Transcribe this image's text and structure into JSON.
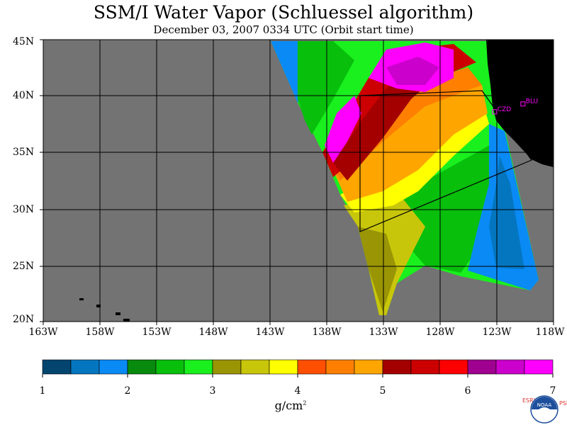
{
  "title": "SSM/I Water Vapor (Schluessel algorithm)",
  "subtitle": "December 03, 2007  0334 UTC  (Orbit start time)",
  "map": {
    "lat_labels": [
      "45N",
      "40N",
      "35N",
      "30N",
      "25N",
      "20N"
    ],
    "lon_labels": [
      "163W",
      "158W",
      "153W",
      "148W",
      "143W",
      "138W",
      "133W",
      "128W",
      "123W",
      "118W"
    ],
    "stations": [
      {
        "name": "CZD",
        "lat": 38.6,
        "lon": -123.2
      },
      {
        "name": "BLU",
        "lat": 39.3,
        "lon": -120.7
      }
    ],
    "colors": {
      "ocean_no_data": "#737373",
      "land": "#000000",
      "station": "#ff00ff"
    }
  },
  "colorbar": {
    "tick_labels": [
      "1",
      "2",
      "3",
      "4",
      "5",
      "6",
      "7"
    ],
    "units": "g/cm",
    "units_sup": "2",
    "min": 1,
    "max": 7,
    "colors": [
      "#03456f",
      "#0476c0",
      "#0a8af5",
      "#078a0e",
      "#08bf0c",
      "#19f01e",
      "#9a9504",
      "#c8c60a",
      "#ffff00",
      "#ff4f00",
      "#ff7f00",
      "#ffa500",
      "#a40000",
      "#cc0000",
      "#ff0000",
      "#a0008f",
      "#cc00cc",
      "#ff00ff"
    ]
  },
  "logo": {
    "left_letters": "ESRL",
    "right_letters": "PSD",
    "center_text": "NOAA"
  }
}
